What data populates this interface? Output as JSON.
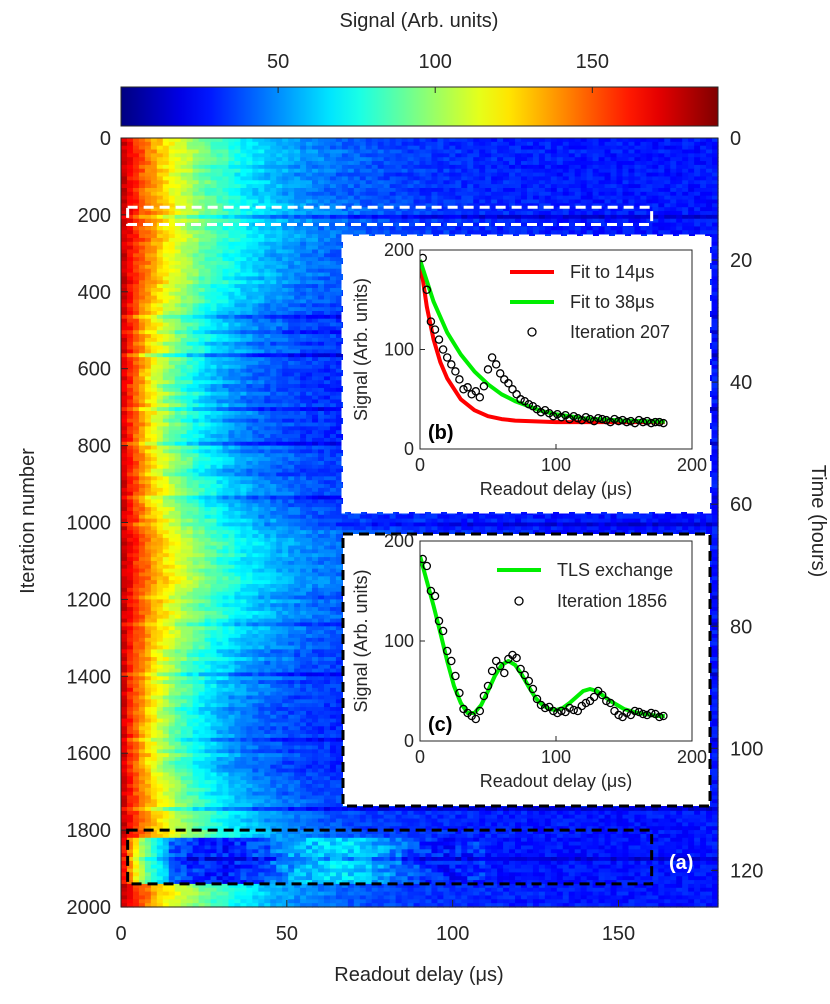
{
  "colorbar": {
    "label": "Signal (Arb. units)",
    "range": [
      0,
      190
    ],
    "ticks": [
      50,
      100,
      150
    ],
    "colormap": "jet"
  },
  "main": {
    "panel_label": "(a)",
    "xlabel": "Readout delay (μs)",
    "ylabel": "Iteration number",
    "ylabel_right": "Time (hours)",
    "xlim": [
      0,
      180
    ],
    "ylim": [
      0,
      2000
    ],
    "xticks": [
      0,
      50,
      100,
      150
    ],
    "yticks": [
      0,
      200,
      400,
      600,
      800,
      1000,
      1200,
      1400,
      1600,
      1800,
      2000
    ],
    "yticks_right": [
      0,
      20,
      40,
      60,
      80,
      100,
      120
    ],
    "right_axis_range": [
      0,
      126
    ],
    "highlight_white": {
      "iterations": [
        180,
        225
      ],
      "delay": [
        2,
        160
      ],
      "color": "#ffffff"
    },
    "highlight_black": {
      "iterations": [
        1800,
        1940
      ],
      "delay": [
        2,
        160
      ],
      "color": "#000000"
    }
  },
  "chart_data": [
    {
      "type": "heatmap",
      "title": "",
      "xlabel": "Readout delay (μs)",
      "ylabel": "Iteration number",
      "xlim": [
        0,
        180
      ],
      "ylim": [
        0,
        2000
      ],
      "colorbar_range": [
        0,
        190
      ],
      "baseline_signal": 27,
      "edge_signal": 180,
      "typical_decay_us": [
        14,
        38
      ],
      "time_hours_at_2000": 126,
      "dark_streak_iterations": [
        205,
        460,
        500,
        560,
        700,
        790,
        930,
        1000,
        1195,
        1260,
        1390,
        1560,
        1740,
        1870
      ]
    },
    {
      "type": "line",
      "panel": "(b)",
      "xlabel": "Readout delay (μs)",
      "ylabel": "Signal (Arb. units)",
      "xlim": [
        0,
        200
      ],
      "ylim": [
        0,
        200
      ],
      "xticks": [
        0,
        100,
        200
      ],
      "yticks": [
        0,
        100,
        200
      ],
      "series": [
        {
          "name": "Fit to 14μs",
          "kind": "line",
          "color": "#ff0000",
          "x": [
            0,
            5,
            10,
            15,
            20,
            30,
            40,
            50,
            60,
            70,
            80,
            100,
            120,
            150,
            180
          ],
          "y": [
            190,
            143,
            110,
            87,
            71,
            50,
            39,
            33,
            30,
            28.5,
            28,
            27,
            27,
            27,
            27
          ]
        },
        {
          "name": "Fit to 38μs",
          "kind": "line",
          "color": "#00ee00",
          "x": [
            0,
            10,
            20,
            30,
            40,
            50,
            60,
            70,
            80,
            90,
            100,
            120,
            150,
            180
          ],
          "y": [
            190,
            148,
            117,
            95,
            78,
            65,
            55,
            48,
            43,
            38,
            35,
            31,
            28.5,
            27.5
          ]
        },
        {
          "name": "Iteration 207",
          "kind": "scatter",
          "color": "#000000",
          "x": [
            2,
            5,
            8,
            11,
            14,
            17,
            20,
            23,
            26,
            29,
            32,
            35,
            38,
            41,
            44,
            47,
            50,
            53,
            56,
            59,
            62,
            65,
            68,
            71,
            74,
            77,
            80,
            83,
            86,
            89,
            92,
            95,
            98,
            101,
            104,
            107,
            110,
            113,
            116,
            119,
            122,
            125,
            128,
            131,
            134,
            137,
            140,
            143,
            146,
            149,
            152,
            155,
            158,
            161,
            164,
            167,
            170,
            173,
            176,
            179
          ],
          "y": [
            192,
            160,
            128,
            120,
            110,
            100,
            92,
            85,
            78,
            70,
            60,
            62,
            55,
            58,
            52,
            63,
            80,
            92,
            85,
            76,
            70,
            66,
            60,
            55,
            50,
            48,
            45,
            43,
            40,
            37,
            39,
            36,
            33,
            35,
            32,
            34,
            30,
            33,
            31,
            29,
            32,
            30,
            28,
            31,
            30,
            29,
            27,
            30,
            28,
            29,
            27,
            28,
            26,
            29,
            27,
            28,
            26,
            27,
            27,
            26
          ]
        }
      ]
    },
    {
      "type": "line",
      "panel": "(c)",
      "xlabel": "Readout delay (μs)",
      "ylabel": "Signal (Arb. units)",
      "xlim": [
        0,
        200
      ],
      "ylim": [
        0,
        200
      ],
      "xticks": [
        0,
        100,
        200
      ],
      "yticks": [
        0,
        100,
        200
      ],
      "series": [
        {
          "name": "TLS exchange",
          "kind": "line",
          "color": "#00ee00",
          "x": [
            0,
            5,
            10,
            15,
            20,
            25,
            30,
            35,
            40,
            45,
            50,
            55,
            60,
            65,
            70,
            75,
            80,
            85,
            90,
            95,
            100,
            105,
            110,
            115,
            120,
            125,
            130,
            135,
            140,
            145,
            150,
            155,
            160,
            165,
            170,
            175,
            180
          ],
          "y": [
            185,
            160,
            135,
            108,
            80,
            55,
            38,
            28,
            28,
            36,
            50,
            65,
            76,
            80,
            76,
            66,
            54,
            43,
            36,
            32,
            31,
            33,
            38,
            44,
            50,
            52,
            50,
            45,
            40,
            36,
            32,
            30,
            28,
            27,
            26,
            25,
            25
          ]
        },
        {
          "name": "Iteration 1856",
          "kind": "scatter",
          "color": "#000000",
          "x": [
            2,
            5,
            8,
            11,
            14,
            17,
            20,
            23,
            26,
            29,
            32,
            35,
            38,
            41,
            44,
            47,
            50,
            53,
            56,
            59,
            62,
            65,
            68,
            71,
            74,
            77,
            80,
            83,
            86,
            89,
            92,
            95,
            98,
            101,
            104,
            107,
            110,
            113,
            116,
            119,
            122,
            125,
            128,
            131,
            134,
            137,
            140,
            143,
            146,
            149,
            152,
            155,
            158,
            161,
            164,
            167,
            170,
            173,
            176,
            179
          ],
          "y": [
            182,
            175,
            150,
            145,
            120,
            110,
            90,
            80,
            65,
            48,
            32,
            28,
            25,
            22,
            30,
            45,
            55,
            70,
            80,
            75,
            68,
            82,
            86,
            83,
            72,
            66,
            60,
            52,
            42,
            36,
            33,
            34,
            30,
            28,
            30,
            29,
            33,
            31,
            30,
            35,
            38,
            40,
            44,
            50,
            46,
            40,
            38,
            30,
            26,
            24,
            28,
            26,
            30,
            29,
            27,
            26,
            28,
            27,
            24,
            25
          ]
        }
      ]
    }
  ]
}
